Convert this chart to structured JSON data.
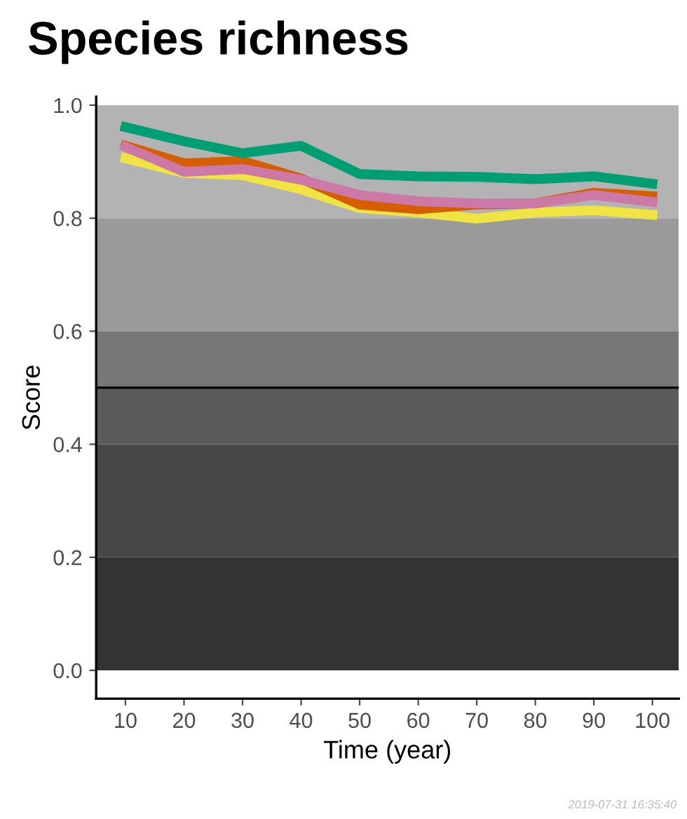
{
  "chart_data": {
    "type": "line",
    "title": "Species richness",
    "xlabel": "Time (year)",
    "ylabel": "Score",
    "x": [
      10,
      20,
      30,
      40,
      50,
      60,
      70,
      80,
      90,
      100
    ],
    "series": [
      {
        "color": "#f0e442",
        "values": [
          0.906,
          0.88,
          0.876,
          0.851,
          0.818,
          0.81,
          0.799,
          0.81,
          0.814,
          0.806
        ]
      },
      {
        "color": "#d55e00",
        "values": [
          0.928,
          0.897,
          0.901,
          0.87,
          0.824,
          0.816,
          0.824,
          0.826,
          0.845,
          0.839
        ]
      },
      {
        "color": "#cc79a7",
        "values": [
          0.926,
          0.882,
          0.887,
          0.868,
          0.841,
          0.83,
          0.826,
          0.826,
          0.841,
          0.829
        ]
      },
      {
        "color": "#009e73",
        "values": [
          0.961,
          0.936,
          0.915,
          0.928,
          0.878,
          0.874,
          0.873,
          0.869,
          0.874,
          0.861
        ]
      }
    ],
    "xlim": [
      5,
      104.5
    ],
    "ylim": [
      -0.05,
      1.015
    ],
    "xticks": [
      10,
      20,
      30,
      40,
      50,
      60,
      70,
      80,
      90,
      100
    ],
    "yticks": [
      {
        "value": 0,
        "label": "0.0"
      },
      0.2,
      0.4,
      0.6,
      0.8,
      {
        "value": 1,
        "label": "1.0"
      }
    ],
    "bands": [
      {
        "axis": "y",
        "from": 0,
        "to": 0.2,
        "color": "#333333"
      },
      {
        "axis": "y",
        "from": 0.2,
        "to": 0.4,
        "color": "#474747"
      },
      {
        "axis": "y",
        "from": 0.4,
        "to": 0.5,
        "color": "#5a5a5a"
      },
      {
        "axis": "y",
        "from": 0.5,
        "to": 0.6,
        "color": "#777777"
      },
      {
        "axis": "y",
        "from": 0.6,
        "to": 0.8,
        "color": "#9a9a9a"
      },
      {
        "axis": "y",
        "from": 0.8,
        "to": 1.0,
        "color": "#b3b3b3"
      }
    ],
    "ref_lines": [
      {
        "axis": "y",
        "value": 0.5,
        "color": "#000000",
        "line_style": "solid"
      }
    ],
    "annotations": [
      "2019-07-31 16:35:40"
    ],
    "grid": false,
    "marker": "none",
    "line_style": "solid"
  }
}
